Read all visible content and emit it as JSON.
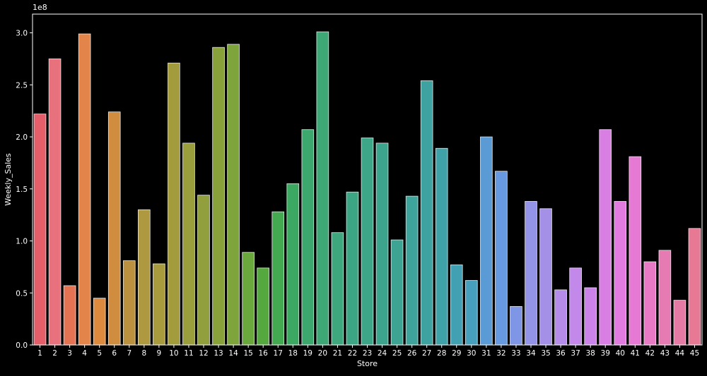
{
  "chart_data": {
    "type": "bar",
    "title": "",
    "xlabel": "Store",
    "ylabel": "Weekly_Sales",
    "offset_label": "1e8",
    "ylim": [
      0,
      3.18
    ],
    "yticks": [
      0.0,
      0.5,
      1.0,
      1.5,
      2.0,
      2.5,
      3.0
    ],
    "ytick_labels": [
      "0.0",
      "0.5",
      "1.0",
      "1.5",
      "2.0",
      "2.5",
      "3.0"
    ],
    "grid": false,
    "background": "#000000",
    "foreground": "#ffffff",
    "categories": [
      "1",
      "2",
      "3",
      "4",
      "5",
      "6",
      "7",
      "8",
      "9",
      "10",
      "11",
      "12",
      "13",
      "14",
      "15",
      "16",
      "17",
      "18",
      "19",
      "20",
      "21",
      "22",
      "23",
      "24",
      "25",
      "26",
      "27",
      "28",
      "29",
      "30",
      "31",
      "32",
      "33",
      "34",
      "35",
      "36",
      "37",
      "38",
      "39",
      "40",
      "41",
      "42",
      "43",
      "44",
      "45"
    ],
    "values": [
      2.22,
      2.75,
      0.57,
      2.99,
      0.45,
      2.24,
      0.81,
      1.3,
      0.78,
      2.71,
      1.94,
      1.44,
      2.86,
      2.89,
      0.89,
      0.74,
      1.28,
      1.55,
      2.07,
      3.01,
      1.08,
      1.47,
      1.99,
      1.94,
      1.01,
      1.43,
      2.54,
      1.89,
      0.77,
      0.62,
      2.0,
      1.67,
      0.37,
      1.38,
      1.31,
      0.53,
      0.74,
      0.55,
      2.07,
      1.38,
      1.81,
      0.8,
      0.91,
      0.43,
      1.12
    ],
    "colors": [
      "#e55f6a",
      "#e7727e",
      "#e47354",
      "#e3854a",
      "#dd8a3f",
      "#d08d40",
      "#bb9140",
      "#ae9940",
      "#a89b3e",
      "#a29c3d",
      "#9b9e3d",
      "#919f3c",
      "#88a13b",
      "#7ea53c",
      "#6aa73c",
      "#55a83e",
      "#44aa52",
      "#3ca962",
      "#3ca86e",
      "#3da776",
      "#3ea77d",
      "#3ca583",
      "#3da588",
      "#3ca48d",
      "#3da493",
      "#3ea39a",
      "#3ea2a1",
      "#3fa2a8",
      "#42a0b3",
      "#479fbe",
      "#5a9bd6",
      "#6699e0",
      "#7e96e5",
      "#9393e8",
      "#a590e8",
      "#b68cea",
      "#c288ea",
      "#cc83e9",
      "#d97ee3",
      "#e27be0",
      "#e679d4",
      "#e879c4",
      "#e67bb4",
      "#e57aa4",
      "#e77995"
    ]
  }
}
